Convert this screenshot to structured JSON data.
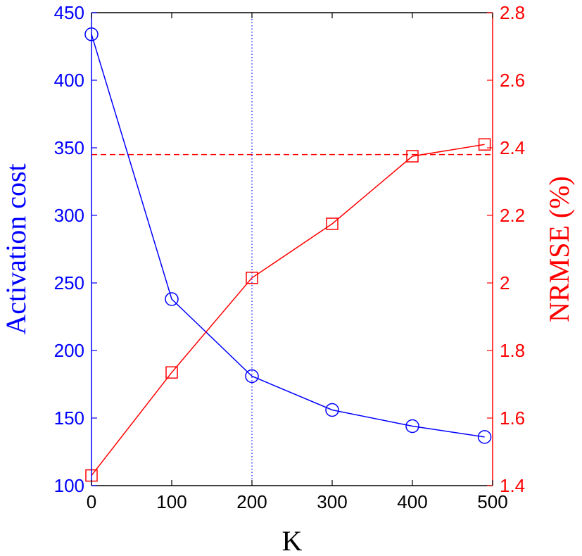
{
  "chart_data": {
    "type": "line",
    "xlabel": "K",
    "ylabel_left": "Activation cost",
    "ylabel_right": "NRMSE (%)",
    "xlim": [
      0,
      500
    ],
    "ylim_left": [
      100,
      450
    ],
    "ylim_right": [
      1.4,
      2.8
    ],
    "xticks": [
      "0",
      "100",
      "200",
      "300",
      "400",
      "500"
    ],
    "yticks_left": [
      "100",
      "150",
      "200",
      "250",
      "300",
      "350",
      "400",
      "450"
    ],
    "yticks_right": [
      "1.4",
      "1.6",
      "1.8",
      "2",
      "2.2",
      "2.4",
      "2.6",
      "2.8"
    ],
    "grid": false,
    "colors": {
      "left": "#0000ff",
      "right": "#ff0000"
    },
    "series": [
      {
        "axis": "left",
        "marker": "circle",
        "color": "#0000ff",
        "x": [
          0,
          100,
          200,
          300,
          400,
          490
        ],
        "y": [
          434,
          238,
          181,
          156,
          144,
          136
        ]
      },
      {
        "axis": "right",
        "marker": "square",
        "color": "#ff0000",
        "x": [
          0,
          100,
          200,
          300,
          400,
          490
        ],
        "y": [
          1.43,
          1.735,
          2.015,
          2.175,
          2.375,
          2.41
        ]
      }
    ],
    "reference_lines": [
      {
        "orientation": "vertical",
        "x": 200,
        "style": "dotted",
        "color": "#0000ff"
      },
      {
        "orientation": "horizontal",
        "axis": "right",
        "y": 2.38,
        "style": "dashed",
        "color": "#ff0000"
      }
    ]
  }
}
